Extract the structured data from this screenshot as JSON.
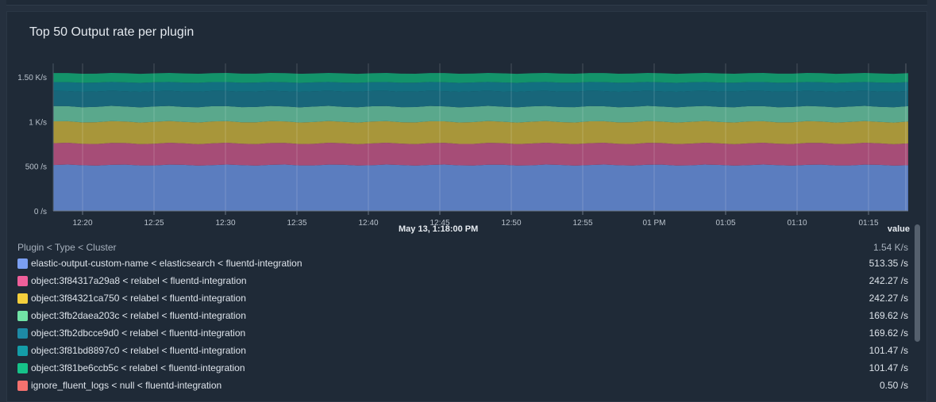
{
  "panel": {
    "title": "Top 50 Output rate per plugin"
  },
  "tooltip": {
    "time": "May 13, 1:18:00 PM",
    "value_header": "value",
    "subheader": "Plugin < Type < Cluster",
    "total": "1.54 K/s"
  },
  "legend": [
    {
      "name": "elastic-output-custom-name < elasticsearch < fluentd-integration",
      "value": "513.35 /s",
      "color": "#7b9ff2"
    },
    {
      "name": "object:3f84317a29a8 < relabel < fluentd-integration",
      "value": "242.27 /s",
      "color": "#ee5f9a"
    },
    {
      "name": "object:3f84321ca750 < relabel < fluentd-integration",
      "value": "242.27 /s",
      "color": "#f4cf3c"
    },
    {
      "name": "object:3fb2daea203c < relabel < fluentd-integration",
      "value": "169.62 /s",
      "color": "#71e3a6"
    },
    {
      "name": "object:3fb2dbcce9d0 < relabel < fluentd-integration",
      "value": "169.62 /s",
      "color": "#1d8aa6"
    },
    {
      "name": "object:3f81bd8897c0 < relabel < fluentd-integration",
      "value": "101.47 /s",
      "color": "#149da8"
    },
    {
      "name": "object:3f81be6ccb5c < relabel < fluentd-integration",
      "value": "101.47 /s",
      "color": "#16c289"
    },
    {
      "name": "ignore_fluent_logs < null < fluentd-integration",
      "value": "0.50 /s",
      "color": "#f4716e"
    }
  ],
  "chart_data": {
    "type": "area",
    "stacked": true,
    "title": "Top 50 Output rate per plugin",
    "x": [
      "12:20",
      "12:25",
      "12:30",
      "12:35",
      "12:40",
      "12:45",
      "12:50",
      "12:55",
      "01 PM",
      "01:05",
      "01:10",
      "01:15"
    ],
    "xlabel": "",
    "ylabel": "",
    "yticks": [
      "0 /s",
      "500 /s",
      "1 K/s",
      "1.50 K/s"
    ],
    "ylim": [
      0,
      1650
    ],
    "series": [
      {
        "name": "elastic-output-custom-name < elasticsearch < fluentd-integration",
        "values": [
          513,
          513,
          513,
          513,
          513,
          513,
          513,
          513,
          513,
          513,
          513,
          513
        ],
        "color": "#5b7dbf"
      },
      {
        "name": "object:3f84317a29a8 < relabel < fluentd-integration",
        "values": [
          242,
          242,
          242,
          242,
          242,
          242,
          242,
          242,
          242,
          242,
          242,
          242
        ],
        "color": "#a64d77"
      },
      {
        "name": "object:3f84321ca750 < relabel < fluentd-integration",
        "values": [
          242,
          242,
          242,
          242,
          242,
          242,
          242,
          242,
          242,
          242,
          242,
          242
        ],
        "color": "#a8963a"
      },
      {
        "name": "object:3fb2daea203c < relabel < fluentd-integration",
        "values": [
          170,
          170,
          170,
          170,
          170,
          170,
          170,
          170,
          170,
          170,
          170,
          170
        ],
        "color": "#5aa88c"
      },
      {
        "name": "object:3fb2dbcce9d0 < relabel < fluentd-integration",
        "values": [
          170,
          170,
          170,
          170,
          170,
          170,
          170,
          170,
          170,
          170,
          170,
          170
        ],
        "color": "#18667a"
      },
      {
        "name": "object:3f81bd8897c0 < relabel < fluentd-integration",
        "values": [
          101,
          101,
          101,
          101,
          101,
          101,
          101,
          101,
          101,
          101,
          101,
          101
        ],
        "color": "#126f80"
      },
      {
        "name": "object:3f81be6ccb5c < relabel < fluentd-integration",
        "values": [
          101,
          101,
          101,
          101,
          101,
          101,
          101,
          101,
          101,
          101,
          101,
          101
        ],
        "color": "#13936a"
      }
    ],
    "grid": true,
    "legend_position": "bottom"
  }
}
